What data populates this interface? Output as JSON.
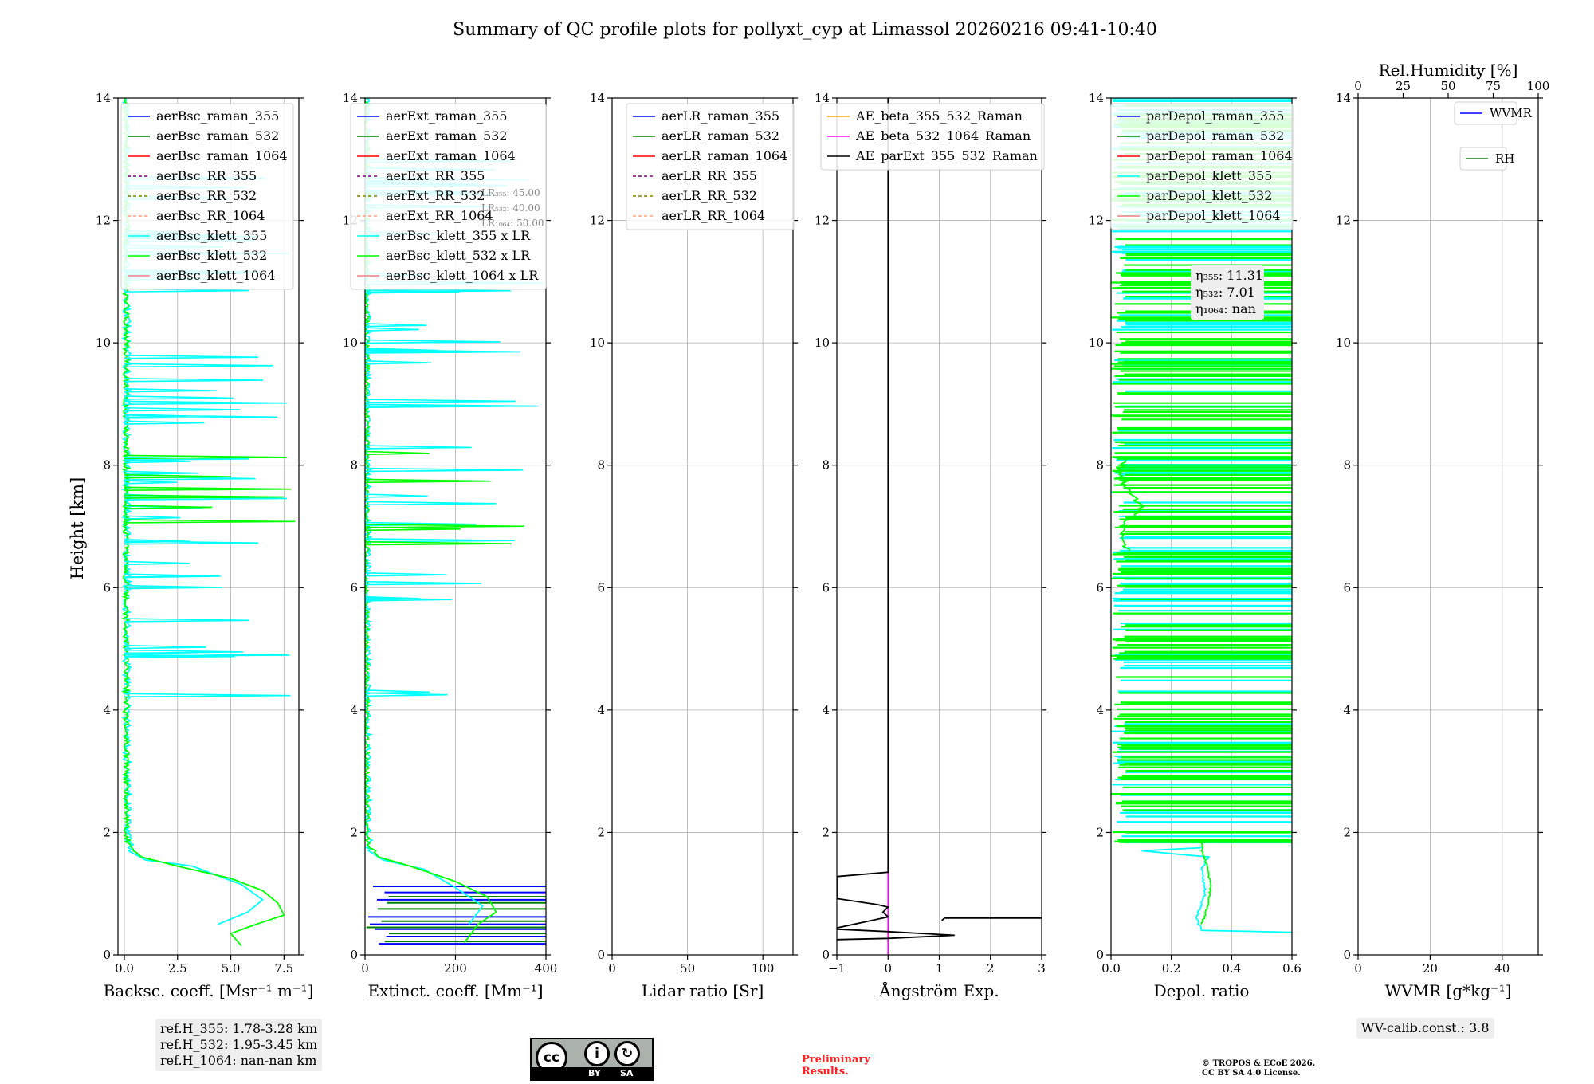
{
  "title": "Summary of QC profile plots for pollyxt_cyp at Limassol 20260216 09:41-10:40",
  "colors": {
    "blue": "#0000ff",
    "green": "#008000",
    "red": "#ff0000",
    "purple": "#800080",
    "olive": "#808000",
    "salmon": "#ffa07a",
    "cyan": "#00ffff",
    "lime": "#00ff00",
    "lightcoral": "#f08080",
    "orange": "#ffa500",
    "magenta": "#ff00ff",
    "black": "#000000",
    "prelim": "#ff2020"
  },
  "ylabel": "Height [km]",
  "footer": {
    "refH": [
      "ref.H_355: 1.78-3.28 km",
      "ref.H_532: 1.95-3.45 km",
      "ref.H_1064: nan-nan km"
    ],
    "cc_by": "BY",
    "cc_sa": "SA",
    "prelim": [
      "Preliminary",
      "Results."
    ],
    "copyright": [
      "© TROPOS & ECoE 2026.",
      "CC BY SA 4.0 License."
    ],
    "wvcalib": "WV-calib.const.: 3.8"
  },
  "chart_data": [
    {
      "type": "line",
      "id": "bsc",
      "xlabel": "Backsc. coeff. [Msr⁻¹ m⁻¹]",
      "ylabel": "Height [km]",
      "xlim": [
        -0.3,
        8.2
      ],
      "ylim": [
        0,
        14
      ],
      "xticks": [
        0,
        2.5,
        5,
        7.5
      ],
      "xticklabels": [
        "0.0",
        "2.5",
        "5.0",
        "7.5"
      ],
      "yticks": [
        0,
        2,
        4,
        6,
        8,
        10,
        12,
        14
      ],
      "legend": [
        {
          "label": "aerBsc_raman_355",
          "color": "blue",
          "dash": false
        },
        {
          "label": "aerBsc_raman_532",
          "color": "green",
          "dash": false
        },
        {
          "label": "aerBsc_raman_1064",
          "color": "red",
          "dash": false
        },
        {
          "label": "aerBsc_RR_355",
          "color": "purple",
          "dash": true
        },
        {
          "label": "aerBsc_RR_532",
          "color": "olive",
          "dash": true
        },
        {
          "label": "aerBsc_RR_1064",
          "color": "salmon",
          "dash": true
        },
        {
          "label": "aerBsc_klett_355",
          "color": "cyan",
          "dash": false
        },
        {
          "label": "aerBsc_klett_532",
          "color": "lime",
          "dash": false
        },
        {
          "label": "aerBsc_klett_1064",
          "color": "lightcoral",
          "dash": false
        }
      ],
      "series": [
        {
          "name": "aerBsc_klett_355",
          "color": "cyan",
          "noisy": true,
          "noise": 0.35,
          "noise_from": 1.7,
          "points": [
            [
              4.4,
              0.5
            ],
            [
              5.8,
              0.7
            ],
            [
              6.5,
              0.9
            ],
            [
              5.5,
              1.15
            ],
            [
              3.2,
              1.45
            ],
            [
              1.0,
              1.55
            ],
            [
              0.2,
              1.7
            ],
            [
              0.1,
              2.0
            ],
            [
              0.05,
              4.0
            ],
            [
              0.05,
              8.0
            ],
            [
              0.05,
              14.0
            ]
          ]
        },
        {
          "name": "aerBsc_klett_532",
          "color": "lime",
          "noisy": true,
          "noise": 0.25,
          "noise_from": 1.7,
          "points": [
            [
              5.5,
              0.15
            ],
            [
              5.0,
              0.35
            ],
            [
              6.2,
              0.5
            ],
            [
              7.5,
              0.65
            ],
            [
              7.2,
              0.85
            ],
            [
              6.5,
              1.05
            ],
            [
              5.0,
              1.25
            ],
            [
              2.5,
              1.45
            ],
            [
              0.8,
              1.6
            ],
            [
              0.15,
              1.8
            ],
            [
              0.05,
              2.0
            ],
            [
              0.02,
              6.0
            ],
            [
              0.05,
              8.0
            ],
            [
              0.02,
              14.0
            ]
          ]
        }
      ],
      "spikes": [
        {
          "name": "aerBsc_klett_355",
          "color": "cyan",
          "y0": 4.2,
          "y1": 13.0,
          "xmin": 0.0,
          "xmax": 8.2,
          "n": 45
        },
        {
          "name": "aerBsc_klett_532",
          "color": "lime",
          "y0": 6.6,
          "y1": 8.2,
          "xmin": 0.0,
          "xmax": 8.2,
          "n": 6
        }
      ]
    },
    {
      "type": "line",
      "id": "ext",
      "xlabel": "Extinct. coeff. [Mm⁻¹]",
      "ylabel": "",
      "xlim": [
        0,
        400
      ],
      "ylim": [
        0,
        14
      ],
      "xticks": [
        0,
        200,
        400
      ],
      "xticklabels": [
        "0",
        "200",
        "400"
      ],
      "yticks": [
        0,
        2,
        4,
        6,
        8,
        10,
        12,
        14
      ],
      "legend": [
        {
          "label": "aerExt_raman_355",
          "color": "blue",
          "dash": false
        },
        {
          "label": "aerExt_raman_532",
          "color": "green",
          "dash": false
        },
        {
          "label": "aerExt_raman_1064",
          "color": "red",
          "dash": false
        },
        {
          "label": "aerExt_RR_355",
          "color": "purple",
          "dash": true
        },
        {
          "label": "aerExt_RR_532",
          "color": "olive",
          "dash": true
        },
        {
          "label": "aerExt_RR_1064",
          "color": "salmon",
          "dash": true
        },
        {
          "label": "aerBsc_klett_355 x LR",
          "color": "cyan",
          "dash": false
        },
        {
          "label": "aerBsc_klett_532 x LR",
          "color": "lime",
          "dash": false
        },
        {
          "label": "aerBsc_klett_1064 x LR",
          "color": "lightcoral",
          "dash": false
        }
      ],
      "lr_text": [
        "LR₃₅₅: 45.00",
        "LR₅₃₂: 40.00",
        "LR₁₀₆₄: 50.00"
      ],
      "series": [
        {
          "name": "aerBsc_klett_355 x LR",
          "color": "cyan",
          "noisy": true,
          "noise": 15,
          "noise_from": 1.7,
          "points": [
            [
              230,
              0.5
            ],
            [
              260,
              0.8
            ],
            [
              200,
              1.1
            ],
            [
              130,
              1.4
            ],
            [
              40,
              1.55
            ],
            [
              8,
              1.7
            ],
            [
              3,
              2.0
            ],
            [
              2,
              6.0
            ],
            [
              2,
              14.0
            ]
          ]
        },
        {
          "name": "aerBsc_klett_532 x LR",
          "color": "lime",
          "noisy": true,
          "noise": 10,
          "noise_from": 1.7,
          "points": [
            [
              220,
              0.2
            ],
            [
              250,
              0.5
            ],
            [
              290,
              0.7
            ],
            [
              270,
              0.95
            ],
            [
              200,
              1.2
            ],
            [
              100,
              1.45
            ],
            [
              30,
              1.6
            ],
            [
              5,
              1.8
            ],
            [
              2,
              2.0
            ],
            [
              1,
              6.0
            ],
            [
              2,
              8.0
            ],
            [
              1,
              14.0
            ]
          ]
        }
      ],
      "raman_hlines": [
        {
          "name": "aerExt_raman_355",
          "color": "blue",
          "ys": [
            0.18,
            0.3,
            0.42,
            0.5,
            0.62,
            0.9,
            1.02,
            1.12
          ],
          "x0": 0,
          "x1": 400
        },
        {
          "name": "aerExt_raman_532",
          "color": "green",
          "ys": [
            0.22,
            0.35,
            0.45,
            0.55,
            0.75,
            0.85,
            0.95
          ],
          "x0": 0,
          "x1": 400
        }
      ],
      "spikes": [
        {
          "name": "aerBsc_klett_355 x LR",
          "color": "cyan",
          "y0": 4.2,
          "y1": 13.0,
          "xmin": 0,
          "xmax": 400,
          "n": 35
        },
        {
          "name": "aerBsc_klett_532 x LR",
          "color": "lime",
          "y0": 6.6,
          "y1": 8.2,
          "xmin": 0,
          "xmax": 400,
          "n": 5
        }
      ]
    },
    {
      "type": "line",
      "id": "lr",
      "xlabel": "Lidar ratio [Sr]",
      "ylabel": "",
      "xlim": [
        0,
        120
      ],
      "ylim": [
        0,
        14
      ],
      "xticks": [
        0,
        50,
        100
      ],
      "xticklabels": [
        "0",
        "50",
        "100"
      ],
      "yticks": [
        0,
        2,
        4,
        6,
        8,
        10,
        12,
        14
      ],
      "legend": [
        {
          "label": "aerLR_raman_355",
          "color": "blue",
          "dash": false
        },
        {
          "label": "aerLR_raman_532",
          "color": "green",
          "dash": false
        },
        {
          "label": "aerLR_raman_1064",
          "color": "red",
          "dash": false
        },
        {
          "label": "aerLR_RR_355",
          "color": "purple",
          "dash": true
        },
        {
          "label": "aerLR_RR_532",
          "color": "olive",
          "dash": true
        },
        {
          "label": "aerLR_RR_1064",
          "color": "salmon",
          "dash": true
        }
      ],
      "series": []
    },
    {
      "type": "line",
      "id": "ae",
      "xlabel": "Ångström Exp.",
      "ylabel": "",
      "xlim": [
        -1,
        3
      ],
      "ylim": [
        0,
        14
      ],
      "xticks": [
        -1,
        0,
        1,
        2,
        3
      ],
      "xticklabels": [
        "−1",
        "0",
        "1",
        "2",
        "3"
      ],
      "yticks": [
        0,
        2,
        4,
        6,
        8,
        10,
        12,
        14
      ],
      "legend": [
        {
          "label": "AE_beta_355_532_Raman",
          "color": "orange",
          "dash": false
        },
        {
          "label": "AE_beta_532_1064_Raman",
          "color": "magenta",
          "dash": false
        },
        {
          "label": "AE_parExt_355_532_Raman",
          "color": "black",
          "dash": false
        }
      ],
      "series": [
        {
          "name": "AE_beta_532_1064_Raman",
          "color": "magenta",
          "noisy": false,
          "points": [
            [
              0,
              0.0
            ],
            [
              0,
              1.37
            ]
          ]
        },
        {
          "name": "AE_parExt_355_532_Raman",
          "color": "black",
          "noisy": false,
          "points": [
            [
              -1,
              0.25
            ],
            [
              0,
              0.27
            ],
            [
              1.3,
              0.32
            ],
            [
              0,
              0.38
            ],
            [
              -1,
              0.42
            ],
            [
              -1,
              0.44
            ],
            [
              0,
              0.62
            ],
            [
              -0.1,
              0.7
            ],
            [
              0,
              0.78
            ],
            [
              -0.2,
              0.82
            ],
            [
              -1,
              0.92
            ],
            [
              -1,
              1.28
            ],
            [
              0,
              1.35
            ],
            [
              0,
              14.0
            ]
          ]
        },
        {
          "name": "AE_parExt_355_532_Raman",
          "color": "black",
          "noisy": false,
          "points": [
            [
              1.05,
              0.56
            ],
            [
              1.1,
              0.6
            ],
            [
              3,
              0.6
            ]
          ]
        }
      ]
    },
    {
      "type": "line",
      "id": "depol",
      "xlabel": "Depol. ratio",
      "ylabel": "",
      "xlim": [
        0,
        0.6
      ],
      "ylim": [
        0,
        14
      ],
      "xticks": [
        0,
        0.2,
        0.4,
        0.6
      ],
      "xticklabels": [
        "0.0",
        "0.2",
        "0.4",
        "0.6"
      ],
      "yticks": [
        0,
        2,
        4,
        6,
        8,
        10,
        12,
        14
      ],
      "legend": [
        {
          "label": "parDepol_raman_355",
          "color": "blue",
          "dash": false
        },
        {
          "label": "parDepol_raman_532",
          "color": "green",
          "dash": false
        },
        {
          "label": "parDepol_raman_1064",
          "color": "red",
          "dash": false
        },
        {
          "label": "parDepol_klett_355",
          "color": "cyan",
          "dash": false
        },
        {
          "label": "parDepol_klett_532",
          "color": "lime",
          "dash": false
        },
        {
          "label": "parDepol_klett_1064",
          "color": "lightcoral",
          "dash": false
        }
      ],
      "eta_text": [
        "η₃₅₅: 11.31",
        "η₅₃₂: 7.01",
        "η₁₀₆₄: nan"
      ],
      "series": [
        {
          "name": "parDepol_klett_355",
          "color": "cyan",
          "noisy": true,
          "noise": 0.008,
          "noise_from": 0.4,
          "points": [
            [
              0.6,
              0.37
            ],
            [
              0.3,
              0.4
            ],
            [
              0.28,
              0.6
            ],
            [
              0.31,
              1.0
            ],
            [
              0.3,
              1.4
            ],
            [
              0.32,
              1.6
            ],
            [
              0.1,
              1.7
            ],
            [
              0.3,
              1.75
            ]
          ]
        },
        {
          "name": "parDepol_klett_532",
          "color": "lime",
          "noisy": true,
          "noise": 0.006,
          "noise_from": 0.4,
          "points": [
            [
              0.3,
              0.5
            ],
            [
              0.32,
              0.8
            ],
            [
              0.33,
              1.1
            ],
            [
              0.32,
              1.4
            ],
            [
              0.3,
              1.7
            ],
            [
              0.3,
              1.85
            ]
          ]
        },
        {
          "name": "parDepol_klett_532",
          "color": "lime",
          "noisy": true,
          "noise": 0.02,
          "noise_from": 6.5,
          "points": [
            [
              0.05,
              6.6
            ],
            [
              0.03,
              7.0
            ],
            [
              0.1,
              7.3
            ],
            [
              0.05,
              7.6
            ],
            [
              0.02,
              7.9
            ],
            [
              0.05,
              8.1
            ]
          ]
        }
      ],
      "hspikes": [
        {
          "name": "parDepol_klett_355",
          "color": "cyan",
          "y0": 1.8,
          "y1": 14.0,
          "n": 150
        },
        {
          "name": "parDepol_klett_532",
          "color": "lime",
          "y0": 1.8,
          "y1": 14.0,
          "n": 210
        }
      ]
    },
    {
      "type": "line",
      "id": "wv",
      "xlabel": "WVMR [g*kg⁻¹]",
      "ylabel": "",
      "xlim": [
        0,
        50
      ],
      "ylim": [
        0,
        14
      ],
      "xticks": [
        0,
        20,
        40
      ],
      "xticklabels": [
        "0",
        "20",
        "40"
      ],
      "yticks": [
        0,
        2,
        4,
        6,
        8,
        10,
        12,
        14
      ],
      "top_xlabel": "Rel.Humidity [%]",
      "top_xlim": [
        0,
        100
      ],
      "top_xticks": [
        0,
        25,
        50,
        75,
        100
      ],
      "legend": [
        {
          "label": "WVMR",
          "color": "blue",
          "dash": false
        },
        {
          "label": "RH",
          "color": "green",
          "dash": false
        }
      ],
      "series": []
    }
  ]
}
